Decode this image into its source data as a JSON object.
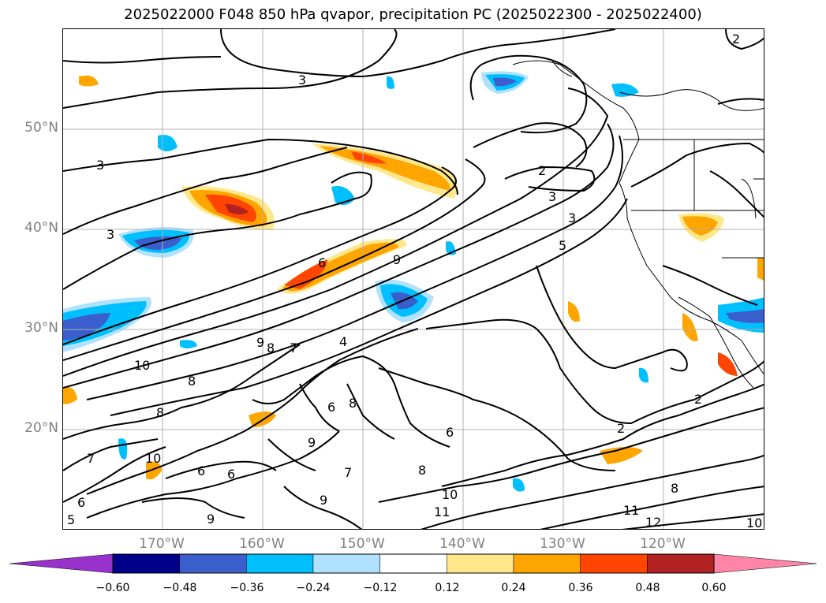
{
  "title": "2025022000 F048 850 hPa qvapor, precipitation PC (2025022300 - 2025022400)",
  "lat_labels": [
    "50°N",
    "40°N",
    "30°N",
    "20°N"
  ],
  "lon_labels": [
    "170°W",
    "160°W",
    "150°W",
    "140°W",
    "130°W",
    "120°W"
  ],
  "contour_labels": [
    "2",
    "3",
    "3",
    "3",
    "2",
    "3",
    "3",
    "5",
    "6",
    "9",
    "10",
    "9",
    "8",
    "7",
    "8",
    "4",
    "8",
    "8",
    "6",
    "6",
    "6",
    "9",
    "7",
    "6",
    "2",
    "2",
    "8",
    "10",
    "11",
    "11",
    "12",
    "10",
    "9",
    "10",
    "9",
    "7",
    "6",
    "5",
    "8"
  ],
  "colorbar": {
    "tick_labels": [
      "−0.60",
      "−0.48",
      "−0.36",
      "−0.24",
      "−0.12",
      "0.12",
      "0.24",
      "0.36",
      "0.48",
      "0.60"
    ],
    "colors": [
      "#9932cc",
      "#00008b",
      "#3a5fcd",
      "#00bfff",
      "#b0e2ff",
      "#ffffff",
      "#ffe88c",
      "#ffa500",
      "#ff4500",
      "#b22222",
      "#ff85a8"
    ]
  }
}
